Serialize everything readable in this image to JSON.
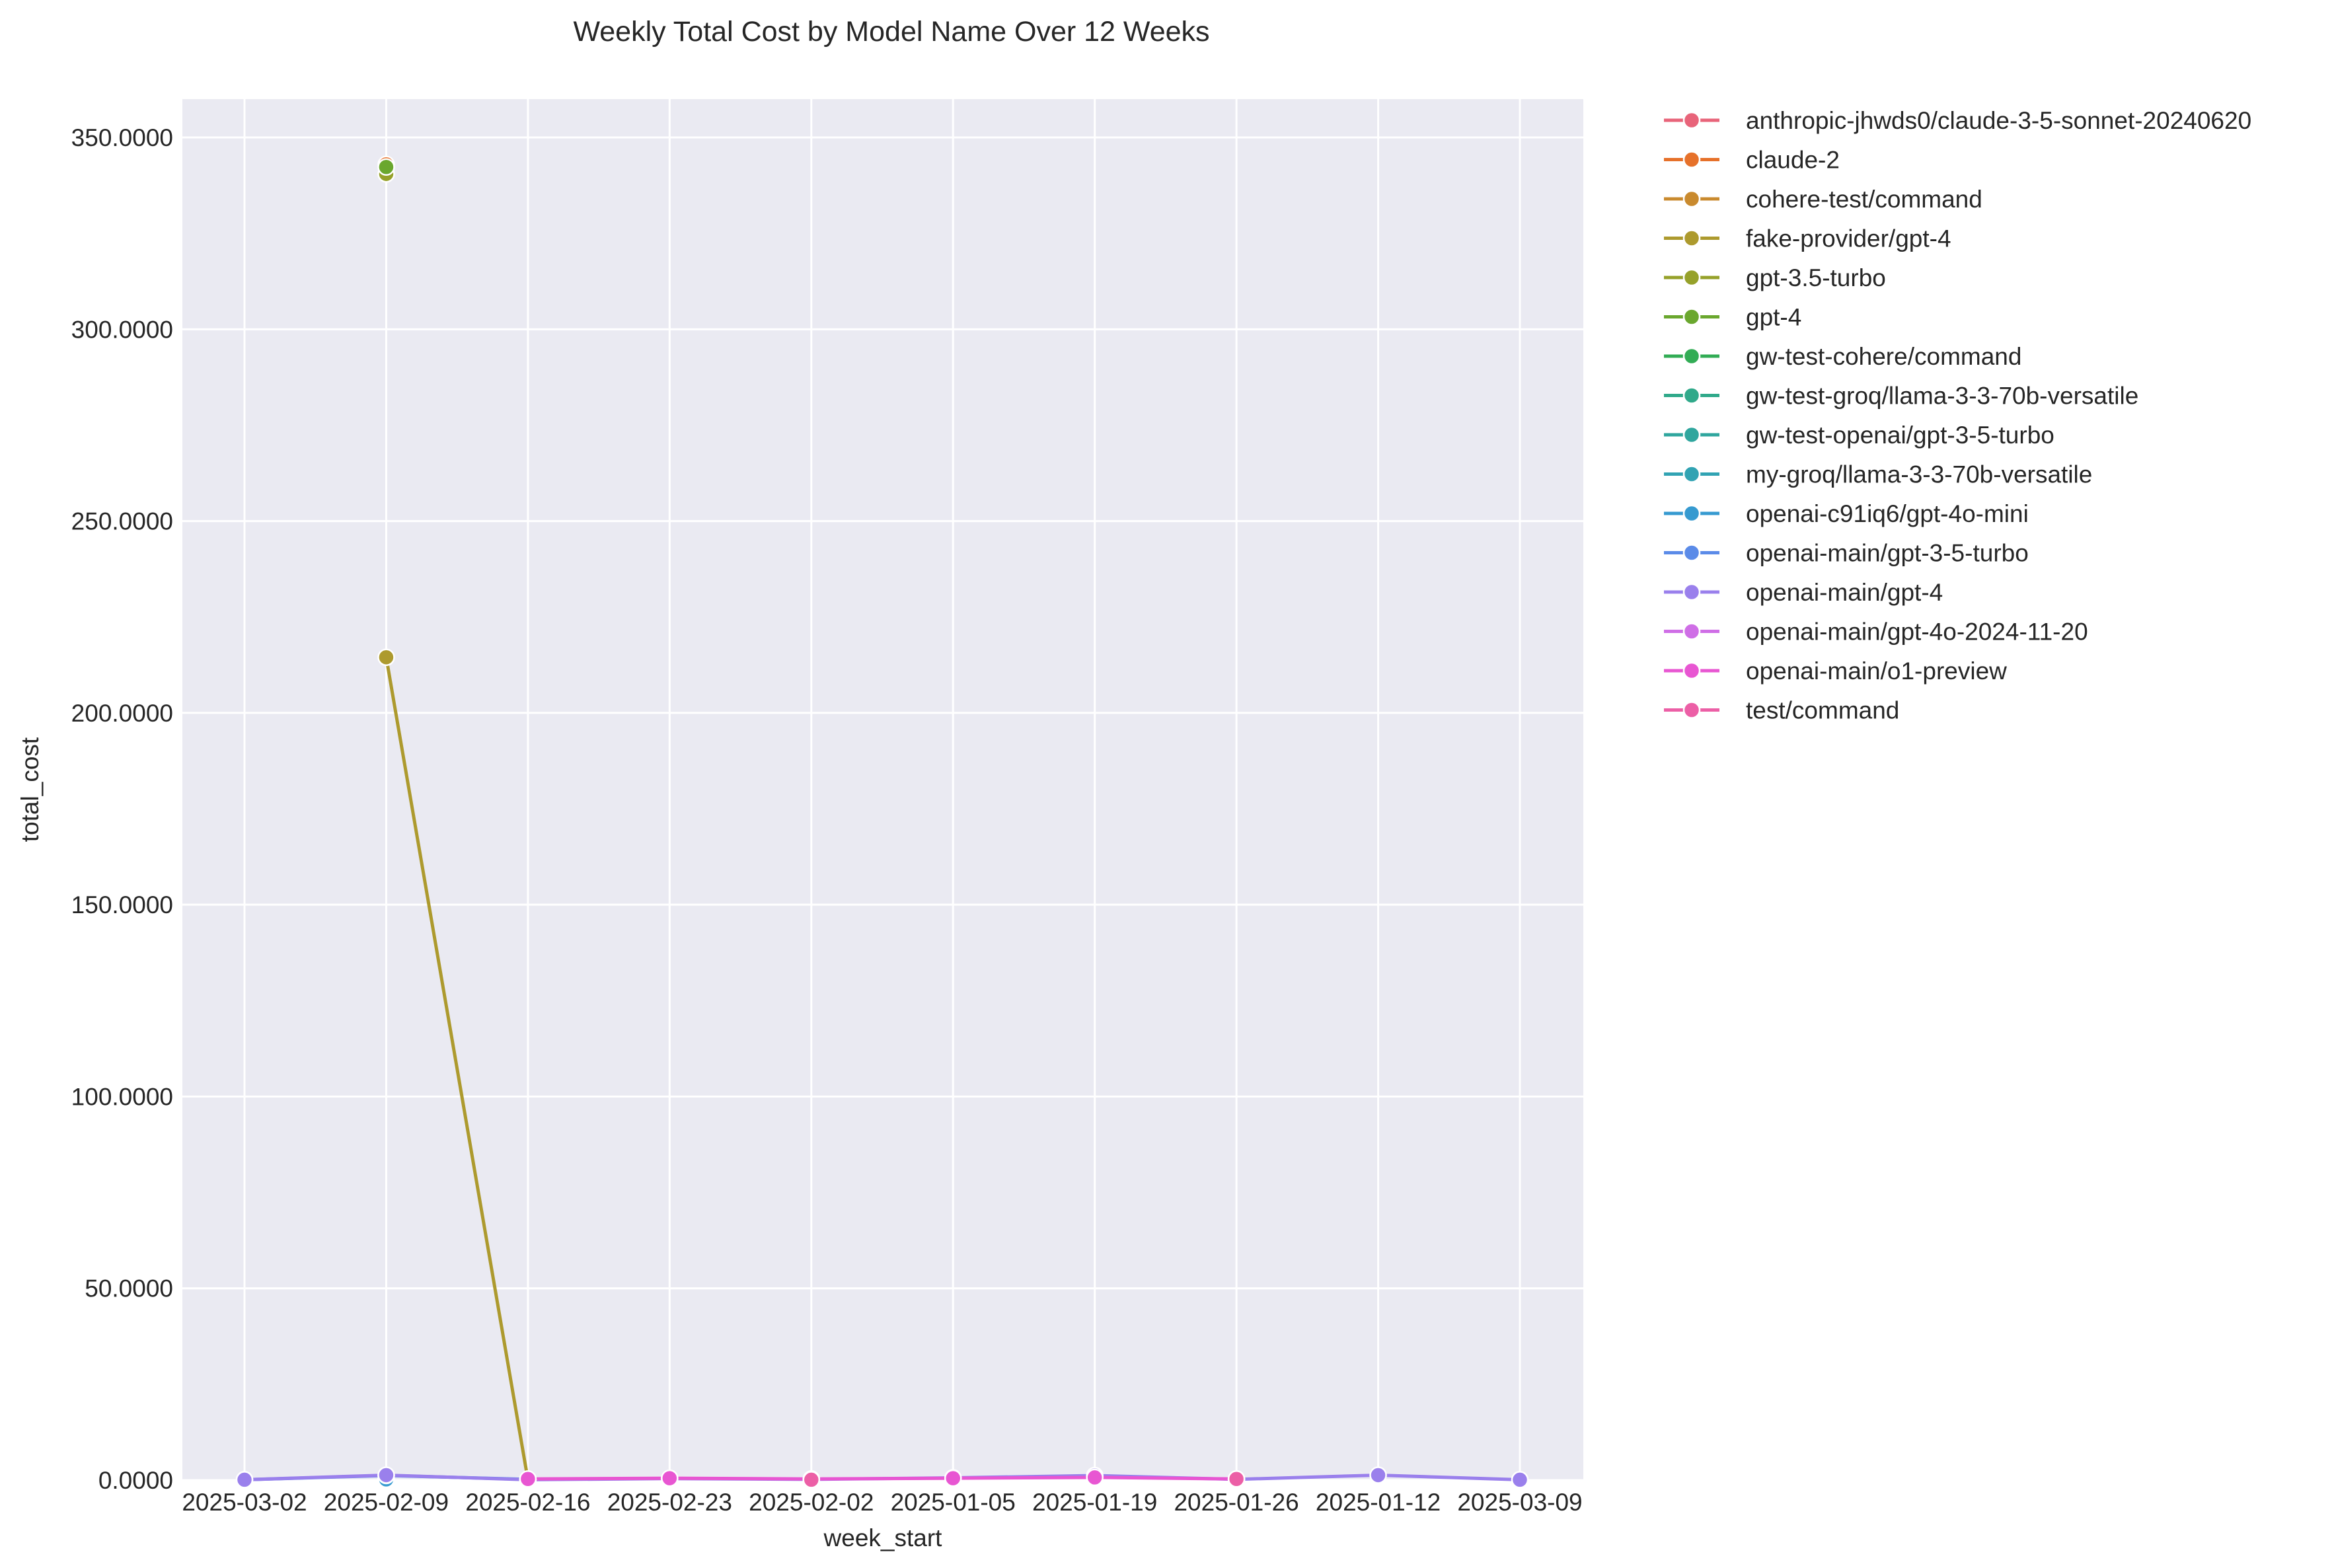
{
  "chart_data": {
    "type": "line",
    "title": "Weekly Total Cost by Model Name Over 12 Weeks",
    "xlabel": "week_start",
    "ylabel": "total_cost",
    "categories": [
      "2025-03-02",
      "2025-02-09",
      "2025-02-16",
      "2025-02-23",
      "2025-02-02",
      "2025-01-05",
      "2025-01-19",
      "2025-01-26",
      "2025-01-12",
      "2025-03-09"
    ],
    "y_ticks": [
      "0.0000",
      "50.0000",
      "100.0000",
      "150.0000",
      "200.0000",
      "250.0000",
      "300.0000",
      "350.0000"
    ],
    "ylim": [
      0,
      360
    ],
    "grid": true,
    "legend_position": "outside-right",
    "series": [
      {
        "name": "anthropic-jhwds0/claude-3-5-sonnet-20240620",
        "color": "#e8647a",
        "values": [
          null,
          0.3,
          null,
          null,
          null,
          null,
          null,
          null,
          null,
          null
        ]
      },
      {
        "name": "claude-2",
        "color": "#e6712a",
        "values": [
          null,
          343.0,
          null,
          null,
          null,
          null,
          null,
          null,
          null,
          null
        ]
      },
      {
        "name": "cohere-test/command",
        "color": "#c98a2e",
        "values": [
          null,
          0.2,
          null,
          null,
          null,
          null,
          null,
          null,
          null,
          null
        ]
      },
      {
        "name": "fake-provider/gpt-4",
        "color": "#ad9a2e",
        "values": [
          null,
          214.5,
          0.1,
          null,
          null,
          null,
          null,
          null,
          null,
          null
        ]
      },
      {
        "name": "gpt-3.5-turbo",
        "color": "#96a12a",
        "values": [
          null,
          340.5,
          null,
          null,
          null,
          null,
          null,
          null,
          null,
          null
        ]
      },
      {
        "name": "gpt-4",
        "color": "#6aa72e",
        "values": [
          null,
          342.3,
          null,
          null,
          null,
          null,
          null,
          null,
          null,
          null
        ]
      },
      {
        "name": "gw-test-cohere/command",
        "color": "#32ac55",
        "values": [
          null,
          0.1,
          null,
          null,
          null,
          null,
          null,
          null,
          null,
          null
        ]
      },
      {
        "name": "gw-test-groq/llama-3-3-70b-versatile",
        "color": "#30a98a",
        "values": [
          null,
          0.1,
          null,
          null,
          null,
          null,
          null,
          null,
          null,
          null
        ]
      },
      {
        "name": "gw-test-openai/gpt-3-5-turbo",
        "color": "#2fa69e",
        "values": [
          null,
          0.1,
          null,
          null,
          null,
          null,
          null,
          null,
          null,
          null
        ]
      },
      {
        "name": "my-groq/llama-3-3-70b-versatile",
        "color": "#31a3b3",
        "values": [
          null,
          0.1,
          null,
          null,
          null,
          null,
          null,
          null,
          null,
          null
        ]
      },
      {
        "name": "openai-c91iq6/gpt-4o-mini",
        "color": "#369ad0",
        "values": [
          null,
          0.2,
          null,
          null,
          null,
          null,
          null,
          null,
          null,
          null
        ]
      },
      {
        "name": "openai-main/gpt-3-5-turbo",
        "color": "#5b8be8",
        "values": [
          0.1,
          1.2,
          0.2,
          null,
          0.1,
          null,
          null,
          null,
          null,
          null
        ]
      },
      {
        "name": "openai-main/gpt-4",
        "color": "#9a80ec",
        "values": [
          0.1,
          1.3,
          0.1,
          0.4,
          0.2,
          0.6,
          1.2,
          0.2,
          1.3,
          0.1
        ]
      },
      {
        "name": "openai-main/gpt-4o-2024-11-20",
        "color": "#cf6ee6",
        "values": [
          null,
          null,
          0.2,
          null,
          null,
          null,
          null,
          null,
          null,
          null
        ]
      },
      {
        "name": "openai-main/o1-preview",
        "color": "#e856d2",
        "values": [
          null,
          null,
          0.3,
          0.5,
          0.3,
          0.5,
          0.7,
          0.3,
          null,
          null
        ]
      },
      {
        "name": "test/command",
        "color": "#ec5fa6",
        "values": [
          null,
          null,
          null,
          null,
          0.1,
          null,
          null,
          0.3,
          null,
          null
        ]
      }
    ]
  }
}
